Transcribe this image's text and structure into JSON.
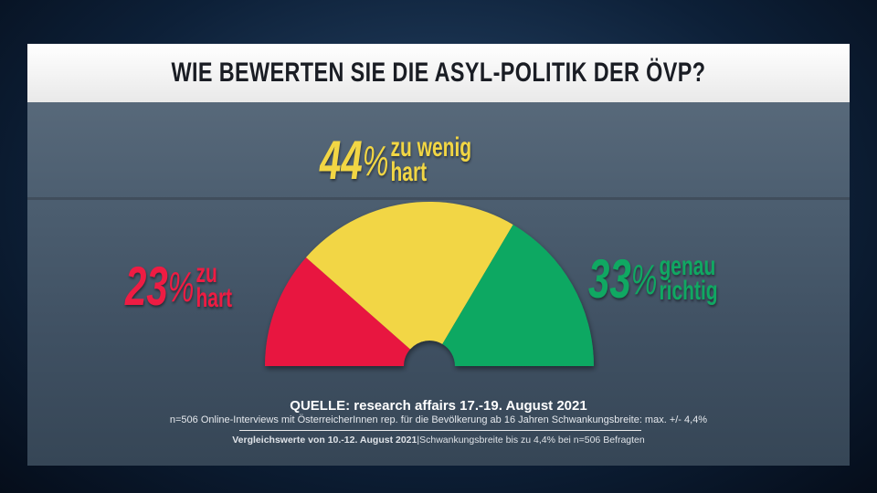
{
  "title": "WIE BEWERTEN SIE DIE ASYL-POLITIK DER ÖVP?",
  "chart_data": {
    "type": "pie",
    "variant": "half-donut gauge",
    "title": "WIE BEWERTEN SIE DIE ASYL-POLITIK DER ÖVP?",
    "categories": [
      "zu hart",
      "zu wenig hart",
      "genau richtig"
    ],
    "values": [
      23,
      44,
      33
    ],
    "unit": "%",
    "colors": [
      "#e8153f",
      "#f2d644",
      "#0ea862"
    ],
    "labels": [
      {
        "value": "23",
        "pct": "%",
        "line1": "zu",
        "line2": "hart"
      },
      {
        "value": "44",
        "pct": "%",
        "line1": "zu wenig",
        "line2": "hart"
      },
      {
        "value": "33",
        "pct": "%",
        "line1": "genau",
        "line2": "richtig"
      }
    ]
  },
  "source": {
    "line1": "QUELLE: research affairs 17.-19. August 2021",
    "line2": "n=506 Online-Interviews mit ÖsterreicherInnen rep. für die Bevölkerung ab 16 Jahren  Schwankungsbreite: max. +/- 4,4%",
    "line3_bold": "Vergleichswerte von  10.-12. August 2021",
    "line3_rest": "|Schwankungsbreite bis zu 4,4% bei n=506 Befragten"
  }
}
